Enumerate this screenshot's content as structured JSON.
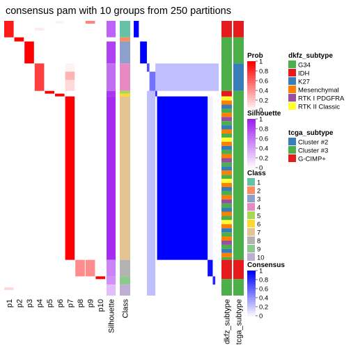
{
  "chart_data": {
    "type": "heatmap",
    "title": "consensus pam with 10 groups from 250 partitions",
    "n_samples": 200,
    "class_colors": {
      "1": "#66C2A5",
      "2": "#FC8D62",
      "3": "#8DA0CB",
      "4": "#E78AC3",
      "5": "#A6D854",
      "6": "#FFD92F",
      "7": "#E5C494",
      "8": "#B3B3B3",
      "9": "#8DC98D",
      "10": "#BEAED4"
    },
    "class_segments": [
      {
        "class": "1",
        "n": 12
      },
      {
        "class": "2",
        "n": 3
      },
      {
        "class": "3",
        "n": 16
      },
      {
        "class": "4",
        "n": 20
      },
      {
        "class": "5",
        "n": 2
      },
      {
        "class": "6",
        "n": 2
      },
      {
        "class": "7",
        "n": 119
      },
      {
        "class": "8",
        "n": 12
      },
      {
        "class": "9",
        "n": 6
      },
      {
        "class": "10",
        "n": 8
      }
    ],
    "prob_columns": [
      {
        "label": "p1",
        "segments": [
          {
            "from": 0,
            "to": 12,
            "prob": 0.9
          },
          {
            "from": 194,
            "to": 196,
            "prob": 0.15
          }
        ]
      },
      {
        "label": "p2",
        "segments": [
          {
            "from": 12,
            "to": 15,
            "prob": 1.0
          }
        ]
      },
      {
        "label": "p3",
        "segments": [
          {
            "from": 15,
            "to": 31,
            "prob": 1.0
          }
        ]
      },
      {
        "label": "p4",
        "segments": [
          {
            "from": 31,
            "to": 51,
            "prob": 0.75
          },
          {
            "from": 5,
            "to": 7,
            "prob": 0.08
          }
        ]
      },
      {
        "label": "p5",
        "segments": [
          {
            "from": 51,
            "to": 53,
            "prob": 1.0
          }
        ]
      },
      {
        "label": "p6",
        "segments": [
          {
            "from": 53,
            "to": 55,
            "prob": 1.0
          },
          {
            "from": 0,
            "to": 2,
            "prob": 0.05
          }
        ]
      },
      {
        "label": "p7",
        "segments": [
          {
            "from": 31,
            "to": 37,
            "prob": 0.05
          },
          {
            "from": 37,
            "to": 43,
            "prob": 0.3
          },
          {
            "from": 43,
            "to": 51,
            "prob": 0.15
          },
          {
            "from": 55,
            "to": 174,
            "prob": 1.0
          }
        ]
      },
      {
        "label": "p8",
        "segments": [
          {
            "from": 174,
            "to": 186,
            "prob": 0.45
          }
        ]
      },
      {
        "label": "p9",
        "segments": [
          {
            "from": 0,
            "to": 2,
            "prob": 0.5
          },
          {
            "from": 174,
            "to": 186,
            "prob": 0.45
          }
        ]
      },
      {
        "label": "p10",
        "segments": [
          {
            "from": 186,
            "to": 188,
            "prob": 1.0
          }
        ]
      }
    ],
    "silhouette_segments": [
      {
        "from": 0,
        "to": 12,
        "value": 0.7
      },
      {
        "from": 12,
        "to": 15,
        "value": 0.0
      },
      {
        "from": 15,
        "to": 31,
        "value": 0.85
      },
      {
        "from": 31,
        "to": 51,
        "value": 0.65
      },
      {
        "from": 51,
        "to": 55,
        "value": 0.9
      },
      {
        "from": 55,
        "to": 174,
        "value": 0.95
      },
      {
        "from": 174,
        "to": 186,
        "value": 0.55
      },
      {
        "from": 186,
        "to": 192,
        "value": 0.5
      },
      {
        "from": 192,
        "to": 200,
        "value": 0.3
      }
    ],
    "consensus_blocks": [
      {
        "from": 0,
        "to": 12,
        "value": 1.0
      },
      {
        "from": 15,
        "to": 31,
        "value": 1.0
      },
      {
        "from": 31,
        "to": 37,
        "value": 0.7
      },
      {
        "from": 37,
        "to": 51,
        "value": 0.55
      },
      {
        "from": 51,
        "to": 55,
        "value": 0.9
      },
      {
        "from": 55,
        "to": 174,
        "value": 1.0
      },
      {
        "from": 174,
        "to": 186,
        "value": 0.95
      },
      {
        "from": 186,
        "to": 192,
        "value": 0.85
      }
    ],
    "consensus_off": [
      {
        "rows": [
          31,
          51
        ],
        "cols": [
          51,
          200
        ],
        "value": 0.25
      },
      {
        "rows": [
          51,
          200
        ],
        "cols": [
          31,
          51
        ],
        "value": 0.25
      },
      {
        "rows": [
          55,
          174
        ],
        "cols": [
          174,
          186
        ],
        "value": 0.05
      }
    ],
    "dkfz_segments": [
      {
        "from": 0,
        "to": 12,
        "cat": "IDH"
      },
      {
        "from": 12,
        "to": 51,
        "cat": "G34"
      },
      {
        "from": 51,
        "to": 55,
        "cat": "IDH"
      },
      {
        "from": 55,
        "to": 58,
        "cat": "RTK II Classic"
      },
      {
        "from": 58,
        "to": 174,
        "cat": "mixed"
      },
      {
        "from": 174,
        "to": 188,
        "cat": "IDH"
      },
      {
        "from": 188,
        "to": 200,
        "cat": "G34"
      }
    ],
    "tcga_segments": [
      {
        "from": 0,
        "to": 12,
        "cat": "G-CIMP+"
      },
      {
        "from": 12,
        "to": 31,
        "cat": "Cluster #3"
      },
      {
        "from": 31,
        "to": 51,
        "cat": "Cluster #2"
      },
      {
        "from": 51,
        "to": 174,
        "cat": "Cluster #3"
      },
      {
        "from": 174,
        "to": 188,
        "cat": "G-CIMP+"
      },
      {
        "from": 188,
        "to": 200,
        "cat": "Cluster #3"
      }
    ],
    "x_labels": [
      "p1",
      "p2",
      "p3",
      "p4",
      "p5",
      "p6",
      "p7",
      "p8",
      "p9",
      "p10",
      "Silhouette",
      "Class",
      "dkfz_subtype",
      "tcga_subtype"
    ],
    "legends": [
      {
        "title": "Prob",
        "type": "continuous",
        "ticks": [
          "1",
          "0.8",
          "0.6",
          "0.4",
          "0.2",
          "0"
        ],
        "color": "#FF0000"
      },
      {
        "title": "Silhouette",
        "type": "continuous",
        "ticks": [
          "1",
          "0.8",
          "0.6",
          "0.4",
          "0.2",
          "0"
        ],
        "color": "#A020F0"
      },
      {
        "title": "Class",
        "type": "discrete",
        "items": [
          "1",
          "2",
          "3",
          "4",
          "5",
          "6",
          "7",
          "8",
          "9",
          "10"
        ]
      },
      {
        "title": "Consensus",
        "type": "continuous",
        "ticks": [
          "1",
          "0.8",
          "0.6",
          "0.4",
          "0.2",
          "0"
        ],
        "color": "#0000FF"
      },
      {
        "title": "dkfz_subtype",
        "type": "discrete",
        "items": [
          {
            "label": "G34",
            "color": "#4DAF4A"
          },
          {
            "label": "IDH",
            "color": "#E41A1C"
          },
          {
            "label": "K27",
            "color": "#377EB8"
          },
          {
            "label": "Mesenchymal",
            "color": "#FF7F00"
          },
          {
            "label": "RTK I PDGFRA",
            "color": "#984EA3"
          },
          {
            "label": "RTK II Classic",
            "color": "#FFFF33"
          }
        ]
      },
      {
        "title": "tcga_subtype",
        "type": "discrete",
        "items": [
          {
            "label": "Cluster #2",
            "color": "#377EB8"
          },
          {
            "label": "Cluster #3",
            "color": "#4DAF4A"
          },
          {
            "label": "G-CIMP+",
            "color": "#E41A1C"
          }
        ]
      }
    ]
  }
}
